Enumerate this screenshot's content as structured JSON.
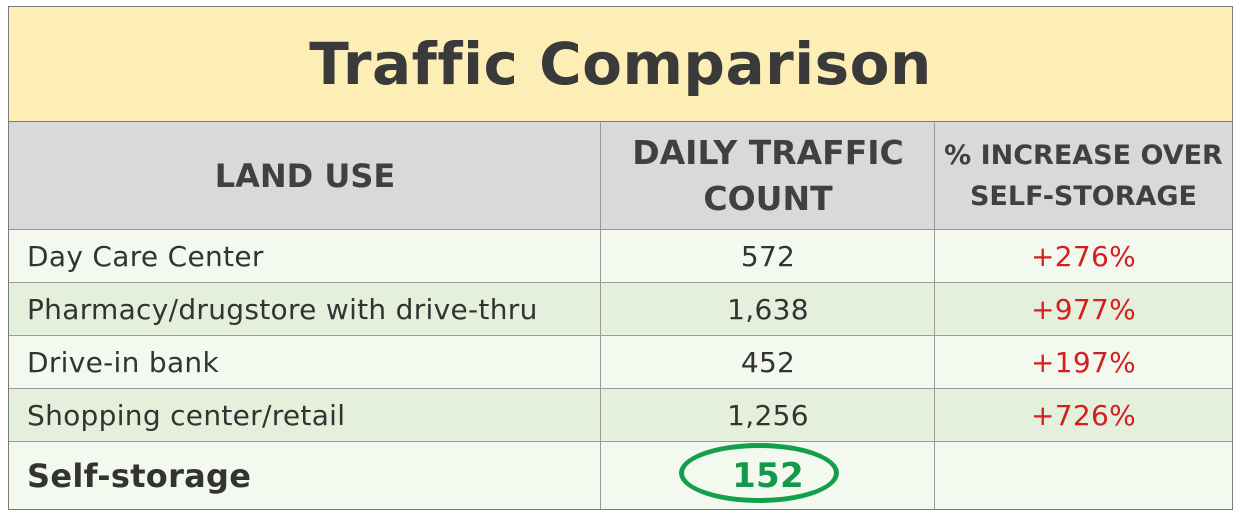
{
  "title": "Traffic Comparison",
  "headers": {
    "land_use": "LAND USE",
    "traffic_line1": "DAILY TRAFFIC",
    "traffic_line2": "COUNT",
    "pct_line1": "% INCREASE OVER",
    "pct_line2": "SELF-STORAGE"
  },
  "rows": [
    {
      "land_use": "Day Care Center",
      "count": "572",
      "pct": "+276%"
    },
    {
      "land_use": "Pharmacy/drugstore with drive-thru",
      "count": "1,638",
      "pct": "+977%"
    },
    {
      "land_use": "Drive-in bank",
      "count": "452",
      "pct": "+197%"
    },
    {
      "land_use": "Shopping center/retail",
      "count": "1,256",
      "pct": "+726%"
    }
  ],
  "baseline": {
    "land_use": "Self-storage",
    "count": "152",
    "pct": ""
  },
  "colors": {
    "title_bg": "#fdeeb6",
    "header_bg": "#d9d9d9",
    "row_odd": "#f3f9ee",
    "row_even": "#e5f0dc",
    "pct_text": "#d21f1f",
    "highlight": "#14a04a"
  }
}
